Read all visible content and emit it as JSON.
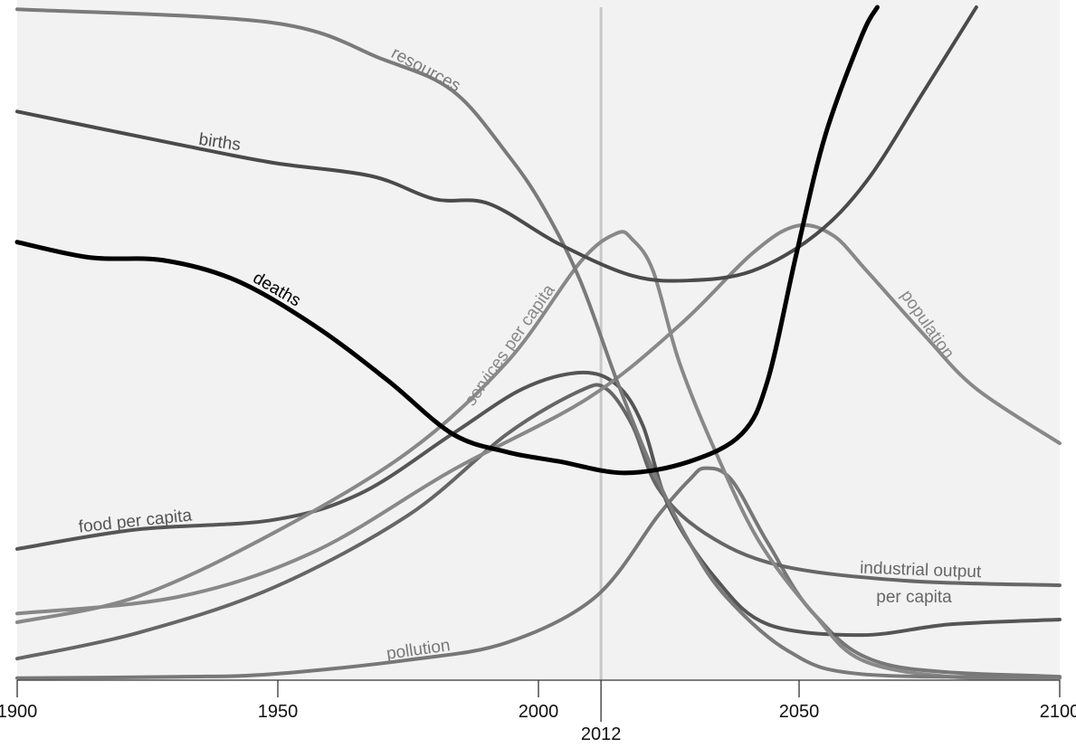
{
  "chart_data": {
    "type": "line",
    "title": "",
    "xlabel": "",
    "ylabel": "",
    "xlim": [
      1900,
      2100
    ],
    "ylim": [
      0,
      100
    ],
    "grid": false,
    "legend": "inline labels",
    "x_ticks": [
      "1900",
      "1950",
      "2000",
      "2050",
      "2100"
    ],
    "marker": {
      "year": 2012,
      "label": "2012",
      "color": "#c8c8c8"
    },
    "background": "#f2f2f2",
    "series": [
      {
        "name": "resources",
        "color": "#7a7a7a",
        "width": 4,
        "points": [
          [
            1900,
            99.7
          ],
          [
            1949,
            97.7
          ],
          [
            1970,
            92.3
          ],
          [
            1983.5,
            87.6
          ],
          [
            1994,
            78.2
          ],
          [
            2001,
            70.2
          ],
          [
            2008,
            59.4
          ],
          [
            2015,
            44.6
          ],
          [
            2022,
            31.2
          ],
          [
            2029,
            20.4
          ],
          [
            2036,
            12.4
          ],
          [
            2048,
            4.3
          ],
          [
            2062,
            0.9
          ],
          [
            2100,
            0.5
          ]
        ]
      },
      {
        "name": "births",
        "color": "#4a4a4a",
        "width": 4,
        "points": [
          [
            1900,
            84.5
          ],
          [
            1931,
            79.6
          ],
          [
            1949,
            76.9
          ],
          [
            1968,
            74.9
          ],
          [
            1980,
            71.5
          ],
          [
            1990.5,
            70.8
          ],
          [
            2004,
            64.8
          ],
          [
            2018,
            60.1
          ],
          [
            2029,
            59.4
          ],
          [
            2041,
            60.8
          ],
          [
            2053,
            66.1
          ],
          [
            2063,
            74.2
          ],
          [
            2074,
            87.6
          ],
          [
            2084,
            100
          ]
        ]
      },
      {
        "name": "deaths",
        "color": "#000000",
        "width": 5,
        "points": [
          [
            1900,
            65.1
          ],
          [
            1914,
            62.8
          ],
          [
            1928,
            62.4
          ],
          [
            1942,
            59.4
          ],
          [
            1957,
            52.7
          ],
          [
            1971,
            44.6
          ],
          [
            1983.5,
            36.6
          ],
          [
            1994,
            33.9
          ],
          [
            2004,
            32.5
          ],
          [
            2016.5,
            30.8
          ],
          [
            2029,
            32.5
          ],
          [
            2039,
            36.6
          ],
          [
            2044,
            44.6
          ],
          [
            2049.5,
            63.4
          ],
          [
            2055,
            80.9
          ],
          [
            2062,
            95.7
          ],
          [
            2065,
            100
          ]
        ]
      },
      {
        "name": "services per capita",
        "color": "#888888",
        "width": 4,
        "points": [
          [
            1900,
            8.6
          ],
          [
            1923,
            12.4
          ],
          [
            1949,
            21.8
          ],
          [
            1975,
            33.9
          ],
          [
            1994,
            47.3
          ],
          [
            2008,
            62.1
          ],
          [
            2015,
            66.4
          ],
          [
            2018,
            65.5
          ],
          [
            2022,
            60.8
          ],
          [
            2027,
            47.3
          ],
          [
            2034,
            33.9
          ],
          [
            2042.5,
            20.4
          ],
          [
            2053,
            9.7
          ],
          [
            2062,
            3
          ],
          [
            2079,
            0.5
          ],
          [
            2100,
            0.3
          ]
        ]
      },
      {
        "name": "population",
        "color": "#888888",
        "width": 4,
        "points": [
          [
            1900,
            9.9
          ],
          [
            1931,
            12.4
          ],
          [
            1957,
            19.1
          ],
          [
            1983.5,
            31.2
          ],
          [
            2009.5,
            41.9
          ],
          [
            2027,
            52.7
          ],
          [
            2041,
            63.4
          ],
          [
            2049.5,
            67.5
          ],
          [
            2056.5,
            66.1
          ],
          [
            2063,
            60.8
          ],
          [
            2074,
            51.3
          ],
          [
            2084,
            43.3
          ],
          [
            2100,
            35.2
          ]
        ]
      },
      {
        "name": "food per capita",
        "color": "#555555",
        "width": 4,
        "points": [
          [
            1900,
            19.5
          ],
          [
            1923,
            22.4
          ],
          [
            1949,
            23.8
          ],
          [
            1966,
            27.8
          ],
          [
            1983.5,
            36.6
          ],
          [
            1997,
            43.3
          ],
          [
            2008,
            45.7
          ],
          [
            2015,
            43.9
          ],
          [
            2020,
            37.9
          ],
          [
            2025,
            25.8
          ],
          [
            2034,
            15.1
          ],
          [
            2044,
            8.3
          ],
          [
            2062,
            6.7
          ],
          [
            2079,
            8.3
          ],
          [
            2100,
            9
          ]
        ]
      },
      {
        "name": "industrial output per capita",
        "label_lines": [
          "industrial output",
          "per capita"
        ],
        "color": "#666666",
        "width": 4,
        "points": [
          [
            1900,
            3.2
          ],
          [
            1923,
            7
          ],
          [
            1949,
            13.7
          ],
          [
            1975,
            24.5
          ],
          [
            1994,
            36.6
          ],
          [
            2008,
            43
          ],
          [
            2013,
            43.3
          ],
          [
            2018,
            37.9
          ],
          [
            2023,
            28.5
          ],
          [
            2032,
            21.8
          ],
          [
            2046,
            17.1
          ],
          [
            2070,
            14.8
          ],
          [
            2100,
            14.1
          ]
        ]
      },
      {
        "name": "pollution",
        "color": "#777777",
        "width": 4,
        "points": [
          [
            1900,
            0.3
          ],
          [
            1931,
            0.5
          ],
          [
            1949,
            0.9
          ],
          [
            1975,
            3
          ],
          [
            1994,
            5.6
          ],
          [
            2011,
            12.4
          ],
          [
            2023,
            24.5
          ],
          [
            2029,
            29.8
          ],
          [
            2032,
            31.5
          ],
          [
            2037,
            29.8
          ],
          [
            2044,
            20.4
          ],
          [
            2053,
            9.7
          ],
          [
            2067,
            2.3
          ],
          [
            2100,
            0.5
          ]
        ]
      }
    ]
  }
}
